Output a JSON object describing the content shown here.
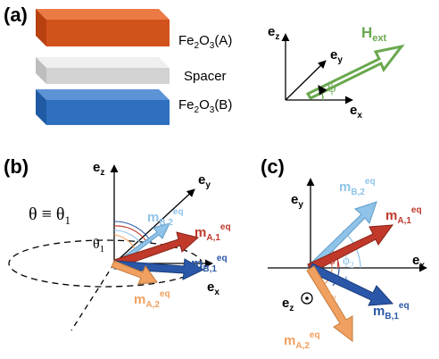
{
  "panels": {
    "a": {
      "label": "(a)",
      "layers": [
        "Fe2O3(A)",
        "Spacer",
        "Fe2O3(B)"
      ],
      "field": {
        "name": "Hext",
        "angle_symbol": "ψ"
      },
      "axes": {
        "x": "ex",
        "y": "ey",
        "z": "ez"
      }
    },
    "b": {
      "label": "(b)",
      "theta_text": "θ ≡ θ1",
      "axes": {
        "x": "ex",
        "y": "ey",
        "z": "ez"
      },
      "vectors": [
        "mA,1eq",
        "mB,2eq",
        "mB,1eq",
        "mA,2eq"
      ],
      "angle": "θ1"
    },
    "c": {
      "label": "(c)",
      "axes": {
        "x": "ex",
        "y": "ey",
        "z": "ez ⊙"
      },
      "vectors": [
        "mB,2eq",
        "mA,1eq",
        "mB,1eq",
        "mA,2eq"
      ],
      "angles": [
        "ϕ1",
        "ϕ2",
        "ϕ1",
        "ϕ2"
      ]
    }
  },
  "colors": {
    "fe_a": "#d2521c",
    "spacer": "#d9d9d9",
    "fe_b": "#2f6fbf",
    "field": "#6aa84f",
    "m_a1": "#c0392b",
    "m_b1": "#2a57a8",
    "m_b2": "#8fc3e8",
    "m_a2": "#f0a060"
  }
}
